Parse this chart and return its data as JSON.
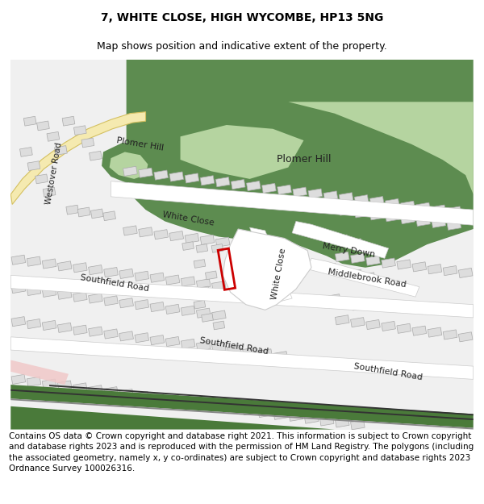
{
  "title": "7, WHITE CLOSE, HIGH WYCOMBE, HP13 5NG",
  "subtitle": "Map shows position and indicative extent of the property.",
  "footer": "Contains OS data © Crown copyright and database right 2021. This information is subject to Crown copyright and database rights 2023 and is reproduced with the permission of HM Land Registry. The polygons (including the associated geometry, namely x, y co-ordinates) are subject to Crown copyright and database rights 2023 Ordnance Survey 100026316.",
  "title_fontsize": 10,
  "subtitle_fontsize": 9,
  "footer_fontsize": 7.5,
  "bg_color": "#ffffff",
  "map_bg": "#f0f0f0",
  "road_color": "#ffffff",
  "road_edge": "#cccccc",
  "building_fill": "#dddddd",
  "building_edge": "#aaaaaa",
  "green_dark": "#5d8c50",
  "green_light": "#8db87a",
  "green_lighter": "#b5d4a0",
  "green_rail": "#4a7a3a",
  "yellow_road_fill": "#f5eab0",
  "yellow_road_edge": "#d4c060",
  "pink_area": "#f0c8c8",
  "red_plot": "#cc0000",
  "label_color": "#222222"
}
